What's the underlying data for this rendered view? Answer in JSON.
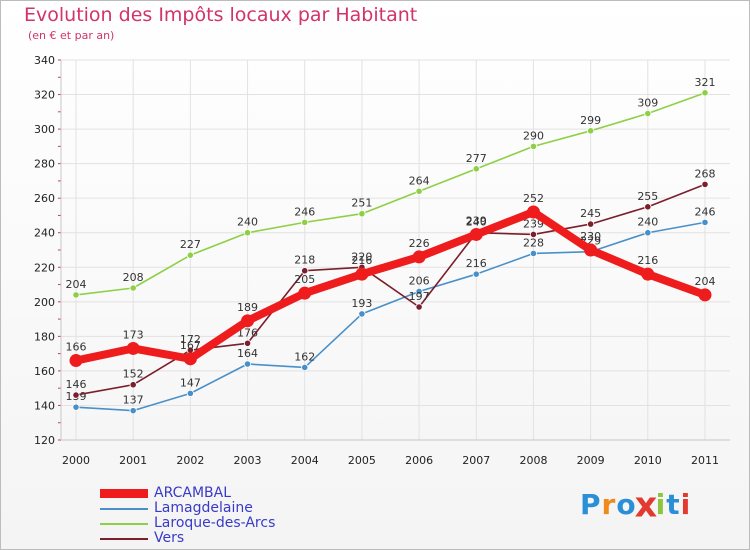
{
  "header": {
    "title": "Evolution des Impôts locaux par Habitant",
    "subtitle": "(en € et par an)"
  },
  "logo": {
    "text": "Proxiti",
    "letters": [
      "P",
      "r",
      "o",
      "x",
      "i",
      "t",
      "i"
    ],
    "colors": [
      "#2a8fd6",
      "#f08a1c",
      "#2a8fd6",
      "#e23a2e",
      "#8cc63f",
      "#2a8fd6",
      "#e23a2e"
    ]
  },
  "chart_data": {
    "type": "line",
    "title": "Evolution des Impôts locaux par Habitant",
    "subtitle": "(en € et par an)",
    "xlabel": "",
    "ylabel": "",
    "categories": [
      "2000",
      "2001",
      "2002",
      "2003",
      "2004",
      "2005",
      "2006",
      "2007",
      "2008",
      "2009",
      "2010",
      "2011"
    ],
    "ylim": [
      120,
      340
    ],
    "yticks": [
      120,
      140,
      160,
      180,
      200,
      220,
      240,
      260,
      280,
      300,
      320,
      340
    ],
    "grid": true,
    "legend_position": "bottom-left",
    "series": [
      {
        "name": "Laroque-des-Arcs",
        "color": "#8ed045",
        "values": [
          204,
          208,
          227,
          240,
          246,
          251,
          264,
          277,
          290,
          299,
          309,
          321
        ],
        "labels": [
          "204",
          "208",
          "227",
          "240",
          "246",
          "251",
          "264",
          "277",
          "290",
          "299",
          "309",
          "321"
        ]
      },
      {
        "name": "Lamagdelaine",
        "color": "#4a90c8",
        "values": [
          139,
          137,
          147,
          164,
          162,
          193,
          206,
          216,
          228,
          229,
          240,
          246
        ],
        "labels": [
          "139",
          "137",
          "147",
          "164",
          "162",
          "193",
          "206",
          "216",
          "228",
          "229",
          "240",
          "246"
        ]
      },
      {
        "name": "Vers",
        "color": "#7a1f2b",
        "values": [
          146,
          152,
          172,
          176,
          218,
          220,
          197,
          240,
          239,
          245,
          255,
          268
        ],
        "labels": [
          "146",
          "152",
          "172",
          "176",
          "218",
          "220",
          "197",
          "240",
          "239",
          "245",
          "255",
          "268"
        ]
      },
      {
        "name": "ARCAMBAL",
        "color": "#ee1c1c",
        "values": [
          166,
          173,
          167,
          189,
          205,
          216,
          226,
          239,
          252,
          230,
          216,
          204
        ],
        "labels": [
          "166",
          "173",
          "167",
          "189",
          "205",
          "216",
          "226",
          "239",
          "252",
          "230",
          "216",
          "204"
        ]
      }
    ],
    "legend": [
      "ARCAMBAL",
      "Lamagdelaine",
      "Laroque-des-Arcs",
      "Vers"
    ]
  }
}
